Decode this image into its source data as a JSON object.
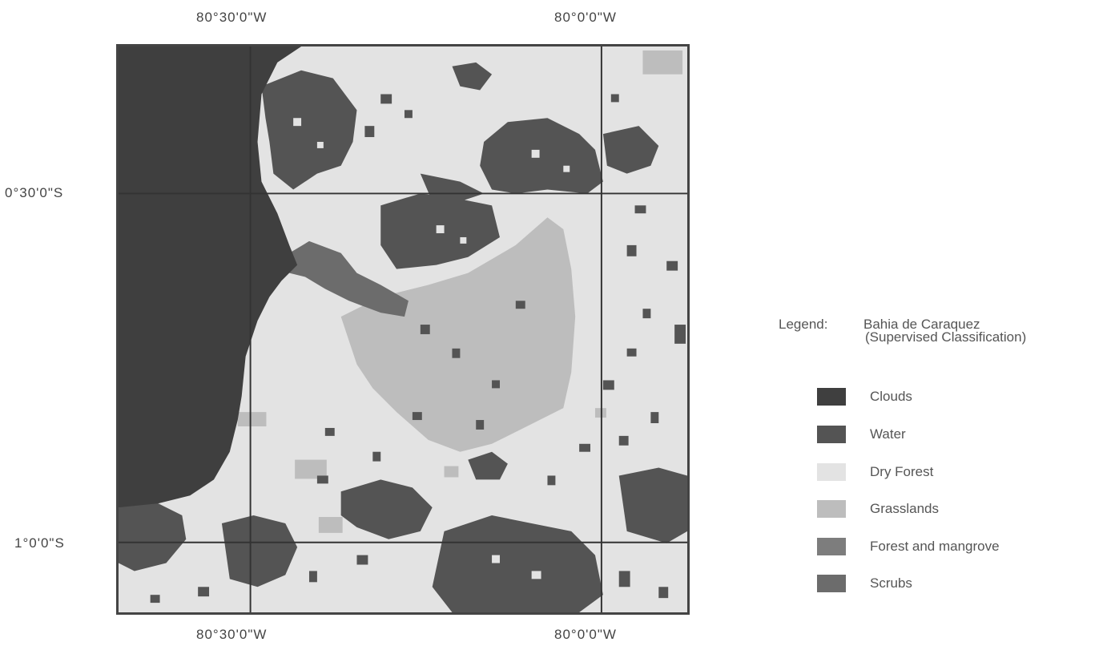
{
  "map": {
    "coords": {
      "top_left": "80°30'0\"W",
      "top_right": "80°0'0\"W",
      "bottom_left": "80°30'0\"W",
      "bottom_right": "80°0'0\"W",
      "lat_upper": "0°30'0\"S",
      "lat_lower": "1°0'0\"S"
    },
    "colors": {
      "clouds": "#3f3f3f",
      "water": "#545454",
      "dry_forest": "#e3e3e3",
      "grasslands": "#bdbdbd",
      "forest_mangrove": "#7d7d7d",
      "scrubs": "#6c6c6c"
    }
  },
  "legend": {
    "label": "Legend:",
    "title": "Bahia de Caraquez",
    "subtitle": "(Supervised Classification)",
    "items": [
      {
        "label": "Clouds",
        "color": "#3f3f3f"
      },
      {
        "label": "Water",
        "color": "#545454"
      },
      {
        "label": "Dry Forest",
        "color": "#e3e3e3"
      },
      {
        "label": "Grasslands",
        "color": "#bdbdbd"
      },
      {
        "label": "Forest and mangrove",
        "color": "#7d7d7d"
      },
      {
        "label": "Scrubs",
        "color": "#6c6c6c"
      }
    ]
  }
}
